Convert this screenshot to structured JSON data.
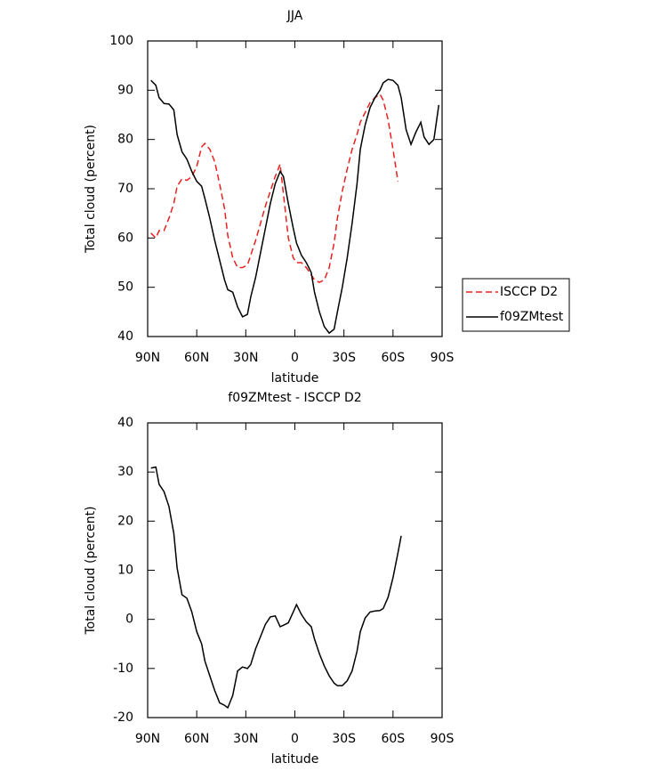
{
  "chart_data": [
    {
      "type": "line",
      "title": "JJA",
      "x_label": "latitude",
      "y_label": "Total cloud (percent)",
      "xlim": [
        90,
        -90
      ],
      "ylim": [
        40,
        100
      ],
      "xticks": [
        {
          "value": 90,
          "label": "90N"
        },
        {
          "value": 60,
          "label": "60N"
        },
        {
          "value": 30,
          "label": "30N"
        },
        0,
        {
          "value": -30,
          "label": "30S"
        },
        {
          "value": -60,
          "label": "60S"
        },
        {
          "value": -90,
          "label": "90S"
        }
      ],
      "yticks": [
        40,
        50,
        60,
        70,
        80,
        90,
        100
      ],
      "legend": "right",
      "x": [
        88,
        85,
        83,
        80,
        77,
        74,
        72,
        69,
        66,
        63,
        60,
        57,
        55,
        52,
        49,
        46,
        43,
        41,
        38,
        35,
        32,
        29,
        27,
        24,
        21,
        18,
        15,
        12,
        9,
        7,
        4,
        1,
        -1,
        -4,
        -7,
        -10,
        -12,
        -15,
        -18,
        -21,
        -24,
        -26,
        -29,
        -32,
        -35,
        -38,
        -40,
        -43,
        -46,
        -49,
        -52,
        -54,
        -57,
        -60,
        -63,
        -65,
        -68,
        -71,
        -74,
        -77,
        -79,
        -82,
        -85,
        -88
      ],
      "series": [
        {
          "name": "ISCCP D2",
          "color": "#e8211f",
          "linestyle": "dashed",
          "values": [
            61,
            60,
            61.5,
            61.5,
            64,
            67,
            70.5,
            72,
            71.7,
            72.5,
            74.5,
            78.5,
            79.2,
            78,
            75.5,
            71,
            66,
            60.5,
            56,
            54,
            54,
            54.5,
            56.5,
            59.5,
            63,
            66.5,
            69.5,
            72.5,
            75,
            69,
            60,
            56,
            55,
            55,
            54,
            52.5,
            51.5,
            51,
            51.5,
            54,
            59,
            64,
            69.5,
            74,
            78,
            81,
            83.5,
            85.5,
            87.5,
            88.5,
            89.2,
            88,
            84,
            78,
            71.5,
            null,
            null,
            null,
            null,
            null,
            null,
            null,
            null,
            null
          ]
        },
        {
          "name": "f09ZMtest",
          "color": "#000000",
          "linestyle": "solid",
          "values": [
            92,
            91,
            88.5,
            87.3,
            87.2,
            86,
            81,
            77.5,
            76,
            73.5,
            71.5,
            70.5,
            68,
            64,
            59.5,
            55.5,
            51.5,
            49.5,
            49,
            46,
            44,
            44.5,
            48,
            52,
            57,
            62,
            67,
            71,
            73.5,
            72.5,
            67,
            62,
            59,
            56.5,
            55,
            53,
            49,
            45,
            42,
            40.7,
            41.5,
            45,
            50,
            56,
            63,
            71,
            78,
            83,
            86.5,
            88.5,
            90,
            91.5,
            92.2,
            92,
            91,
            88.5,
            82,
            79,
            81.5,
            83.5,
            80.5,
            79,
            80,
            87
          ]
        }
      ]
    },
    {
      "type": "line",
      "title": "f09ZMtest - ISCCP D2",
      "x_label": "latitude",
      "y_label": "Total cloud (percent)",
      "xlim": [
        90,
        -90
      ],
      "ylim": [
        -20,
        40
      ],
      "xticks": [
        {
          "value": 90,
          "label": "90N"
        },
        {
          "value": 60,
          "label": "60N"
        },
        {
          "value": 30,
          "label": "30N"
        },
        0,
        {
          "value": -30,
          "label": "30S"
        },
        {
          "value": -60,
          "label": "60S"
        },
        {
          "value": -90,
          "label": "90S"
        }
      ],
      "yticks": [
        -20,
        -10,
        0,
        10,
        20,
        30,
        40
      ],
      "x": [
        88,
        85,
        83,
        80,
        77,
        74,
        72,
        69,
        66,
        63,
        60,
        57,
        55,
        52,
        49,
        46,
        43,
        41,
        38,
        35,
        32,
        29,
        27,
        24,
        21,
        18,
        15,
        12,
        9,
        7,
        4,
        1,
        -1,
        -4,
        -7,
        -10,
        -12,
        -15,
        -18,
        -21,
        -24,
        -26,
        -29,
        -32,
        -35,
        -38,
        -40,
        -43,
        -46,
        -49,
        -52,
        -54,
        -57,
        -60,
        -63,
        -65
      ],
      "series": [
        {
          "color": "#000000",
          "linestyle": "solid",
          "values": [
            30.8,
            31,
            27.5,
            26,
            23,
            17.5,
            10.5,
            5,
            4.3,
            1.5,
            -2.5,
            -5,
            -8.5,
            -11.5,
            -14.5,
            -17,
            -17.5,
            -18,
            -15.5,
            -10.5,
            -9.7,
            -10,
            -9.2,
            -6,
            -3.5,
            -1,
            0.5,
            0.7,
            -1.5,
            -1.2,
            -0.7,
            1.5,
            3,
            1,
            -0.5,
            -1.5,
            -4,
            -7,
            -9.5,
            -11.5,
            -13,
            -13.5,
            -13.5,
            -12.5,
            -10.5,
            -6.5,
            -2.5,
            0.3,
            1.5,
            1.7,
            1.8,
            2.2,
            4.5,
            8.5,
            13.5,
            17
          ]
        }
      ]
    }
  ]
}
